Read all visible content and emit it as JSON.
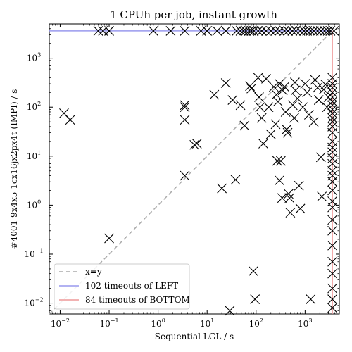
{
  "chart_data": {
    "type": "scatter",
    "title": "1 CPUh per job, instant growth",
    "xlabel": "Sequential LGL / s",
    "ylabel": "#4001 9x4x5 1cx16jx2px4t (IMPI) / s",
    "xscale": "log",
    "yscale": "log",
    "xlim": [
      0.006,
      5000
    ],
    "ylim": [
      0.006,
      5000
    ],
    "grid": false,
    "legend_position": "lower-left",
    "x_ticks": [
      {
        "base": "10",
        "exp": "−2",
        "value": 0.01
      },
      {
        "base": "10",
        "exp": "−1",
        "value": 0.1
      },
      {
        "base": "10",
        "exp": "0",
        "value": 1
      },
      {
        "base": "10",
        "exp": "1",
        "value": 10
      },
      {
        "base": "10",
        "exp": "2",
        "value": 100
      },
      {
        "base": "10",
        "exp": "3",
        "value": 1000
      }
    ],
    "y_ticks": [
      {
        "base": "10",
        "exp": "−2",
        "value": 0.01
      },
      {
        "base": "10",
        "exp": "−1",
        "value": 0.1
      },
      {
        "base": "10",
        "exp": "0",
        "value": 1
      },
      {
        "base": "10",
        "exp": "1",
        "value": 10
      },
      {
        "base": "10",
        "exp": "2",
        "value": 100
      },
      {
        "base": "10",
        "exp": "3",
        "value": 1000
      }
    ],
    "legend": [
      {
        "label": "x=y",
        "color": "#aaaaaa",
        "style": "dashed"
      },
      {
        "label": "102 timeouts of LEFT",
        "color": "#9999ee",
        "style": "solid"
      },
      {
        "label": "84 timeouts of BOTTOM",
        "color": "#ee9999",
        "style": "solid"
      }
    ],
    "timeout_value": 3600,
    "marker": "x",
    "marker_color": "#000000",
    "points": [
      [
        0.012,
        75
      ],
      [
        0.016,
        55
      ],
      [
        0.1,
        0.21
      ],
      [
        3.5,
        110
      ],
      [
        3.5,
        100
      ],
      [
        3.5,
        55
      ],
      [
        3.5,
        4
      ],
      [
        5.5,
        17
      ],
      [
        6.2,
        18
      ],
      [
        14,
        180
      ],
      [
        20,
        2.2
      ],
      [
        24,
        310
      ],
      [
        29,
        0.007
      ],
      [
        33,
        140
      ],
      [
        38,
        3.3
      ],
      [
        48,
        110
      ],
      [
        58,
        42
      ],
      [
        75,
        270
      ],
      [
        80,
        240
      ],
      [
        88,
        0.045
      ],
      [
        95,
        0.012
      ],
      [
        110,
        400
      ],
      [
        115,
        160
      ],
      [
        120,
        100
      ],
      [
        130,
        60
      ],
      [
        140,
        18
      ],
      [
        160,
        380
      ],
      [
        180,
        100
      ],
      [
        200,
        28
      ],
      [
        230,
        260
      ],
      [
        250,
        45
      ],
      [
        260,
        180
      ],
      [
        270,
        8
      ],
      [
        280,
        130
      ],
      [
        300,
        300
      ],
      [
        300,
        3.2
      ],
      [
        320,
        8
      ],
      [
        340,
        1.4
      ],
      [
        350,
        220
      ],
      [
        380,
        260
      ],
      [
        400,
        80
      ],
      [
        420,
        35
      ],
      [
        440,
        30
      ],
      [
        460,
        1.7
      ],
      [
        480,
        1.4
      ],
      [
        500,
        0.7
      ],
      [
        560,
        110
      ],
      [
        600,
        60
      ],
      [
        620,
        320
      ],
      [
        640,
        220
      ],
      [
        700,
        150
      ],
      [
        750,
        2.5
      ],
      [
        800,
        0.85
      ],
      [
        900,
        100
      ],
      [
        1000,
        300
      ],
      [
        1100,
        200
      ],
      [
        1200,
        70
      ],
      [
        1300,
        0.012
      ],
      [
        1500,
        50
      ],
      [
        1600,
        360
      ],
      [
        1800,
        250
      ],
      [
        1900,
        140
      ],
      [
        2100,
        9.5
      ],
      [
        2200,
        1.5
      ],
      [
        2400,
        230
      ],
      [
        2600,
        290
      ],
      [
        2800,
        100
      ],
      [
        3000,
        160
      ],
      [
        0.06,
        3600
      ],
      [
        0.075,
        3600
      ],
      [
        0.1,
        3600
      ],
      [
        0.8,
        3600
      ],
      [
        1.8,
        3600
      ],
      [
        3.5,
        3600
      ],
      [
        7.5,
        3600
      ],
      [
        10,
        3600
      ],
      [
        16,
        3600
      ],
      [
        24,
        3600
      ],
      [
        40,
        3600
      ],
      [
        48,
        3600
      ],
      [
        55,
        3600
      ],
      [
        62,
        3600
      ],
      [
        72,
        3600
      ],
      [
        80,
        3600
      ],
      [
        90,
        3600
      ],
      [
        110,
        3600
      ],
      [
        130,
        3600
      ],
      [
        160,
        3600
      ],
      [
        200,
        3600
      ],
      [
        250,
        3600
      ],
      [
        300,
        3600
      ],
      [
        380,
        3600
      ],
      [
        450,
        3600
      ],
      [
        550,
        3600
      ],
      [
        650,
        3600
      ],
      [
        800,
        3600
      ],
      [
        950,
        3600
      ],
      [
        1100,
        3600
      ],
      [
        1300,
        3600
      ],
      [
        1500,
        3600
      ],
      [
        1800,
        3600
      ],
      [
        2100,
        3600
      ],
      [
        2500,
        3600
      ],
      [
        2900,
        3600
      ],
      [
        3300,
        3600
      ],
      [
        3900,
        3600
      ],
      [
        3600,
        400
      ],
      [
        3600,
        300
      ],
      [
        3600,
        250
      ],
      [
        3600,
        200
      ],
      [
        3600,
        160
      ],
      [
        3600,
        130
      ],
      [
        3600,
        110
      ],
      [
        3600,
        90
      ],
      [
        3600,
        75
      ],
      [
        3600,
        60
      ],
      [
        3600,
        50
      ],
      [
        3600,
        40
      ],
      [
        3600,
        30
      ],
      [
        3600,
        20
      ],
      [
        3600,
        15
      ],
      [
        3600,
        12
      ],
      [
        3600,
        9
      ],
      [
        3600,
        7
      ],
      [
        3600,
        5
      ],
      [
        3600,
        4
      ],
      [
        3600,
        3
      ],
      [
        3600,
        2
      ],
      [
        3600,
        1.2
      ],
      [
        3600,
        0.9
      ],
      [
        3600,
        0.5
      ],
      [
        3600,
        0.3
      ],
      [
        3600,
        0.15
      ],
      [
        3600,
        0.07
      ],
      [
        3600,
        0.04
      ],
      [
        3600,
        0.02
      ],
      [
        3600,
        0.012
      ],
      [
        3600,
        0.008
      ]
    ]
  }
}
